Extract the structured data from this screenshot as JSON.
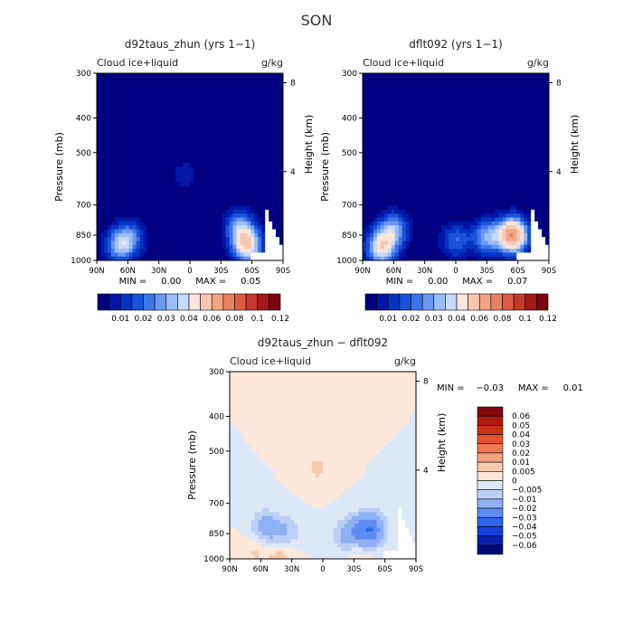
{
  "page_title": "SON",
  "colors": {
    "shared": [
      "#000080",
      "#0016a6",
      "#0633c2",
      "#1a52d9",
      "#3f75ea",
      "#6c97f2",
      "#9bbdf6",
      "#c6dbf8",
      "#fbe4d8",
      "#f8c7b2",
      "#f2a585",
      "#ea8160",
      "#dc5d42",
      "#c53a2d",
      "#a3191c",
      "#7a0510"
    ],
    "diff": [
      "#00087a",
      "#0a1fb0",
      "#163fd8",
      "#2f64ec",
      "#5d8cf3",
      "#8fb0f4",
      "#bcd0f5",
      "#dce8f8",
      "#fde8da",
      "#f9c9ae",
      "#f4a17e",
      "#ee7a55",
      "#e4532f",
      "#cc3218",
      "#ab1a0c",
      "#800808"
    ]
  },
  "chart_data": [
    {
      "type": "heatmap",
      "title": "d92taus_zhun (yrs 1−1)",
      "left_label": "Cloud ice+liquid",
      "right_label": "g/kg",
      "xlabel": "",
      "ylabel": "Pressure (mb)",
      "y2label": "Height (km)",
      "x_ticks": [
        "90N",
        "60N",
        "30N",
        "0",
        "30S",
        "60S",
        "90S"
      ],
      "y_ticks": [
        "300",
        "400",
        "500",
        "700",
        "850",
        "1000"
      ],
      "y2_ticks": [
        "8",
        "4"
      ],
      "min_max": "MIN =     0.00     MAX =     0.05",
      "colorbar_labels": [
        "0.01",
        "0.02",
        "0.03",
        "0.04",
        "0.06",
        "0.08",
        "0.1",
        "0.12"
      ],
      "features": [
        {
          "lat": 68,
          "p": 910,
          "amp": 0.03
        },
        {
          "lat": 57,
          "p": 860,
          "amp": 0.02
        },
        {
          "lat": -55,
          "p": 905,
          "amp": 0.05
        },
        {
          "lat": -48,
          "p": 800,
          "amp": 0.025
        },
        {
          "lat": 5,
          "p": 580,
          "amp": 0.008
        }
      ]
    },
    {
      "type": "heatmap",
      "title": "dflt092 (yrs 1−1)",
      "left_label": "Cloud ice+liquid",
      "right_label": "g/kg",
      "xlabel": "",
      "ylabel": "Pressure (mb)",
      "y2label": "Height (km)",
      "x_ticks": [
        "90N",
        "60N",
        "30N",
        "0",
        "30S",
        "60S",
        "90S"
      ],
      "y_ticks": [
        "300",
        "400",
        "500",
        "700",
        "850",
        "1000"
      ],
      "y2_ticks": [
        "8",
        "4"
      ],
      "min_max": "MIN =     0.00     MAX =     0.07",
      "colorbar_labels": [
        "0.01",
        "0.02",
        "0.03",
        "0.04",
        "0.06",
        "0.08",
        "0.1",
        "0.12"
      ],
      "features": [
        {
          "lat": 72,
          "p": 920,
          "amp": 0.045
        },
        {
          "lat": 60,
          "p": 820,
          "amp": 0.03
        },
        {
          "lat": -55,
          "p": 850,
          "amp": 0.07
        },
        {
          "lat": -30,
          "p": 860,
          "amp": 0.03
        },
        {
          "lat": 0,
          "p": 880,
          "amp": 0.02
        }
      ]
    },
    {
      "type": "heatmap",
      "title": "d92taus_zhun − dflt092",
      "left_label": "Cloud ice+liquid",
      "right_label": "g/kg",
      "xlabel": "",
      "ylabel": "Pressure (mb)",
      "y2label": "Height (km)",
      "x_ticks": [
        "90N",
        "60N",
        "30N",
        "0",
        "30S",
        "60S",
        "90S"
      ],
      "y_ticks": [
        "300",
        "400",
        "500",
        "700",
        "850",
        "1000"
      ],
      "y2_ticks": [
        "8",
        "4"
      ],
      "min_max": "MIN =    −0.03     MAX =     0.01",
      "colorbar_labels": [
        "0.06",
        "0.05",
        "0.04",
        "0.03",
        "0.02",
        "0.01",
        "0.005",
        "0",
        "−0.005",
        "−0.01",
        "−0.02",
        "−0.03",
        "−0.04",
        "−0.05",
        "−0.06"
      ],
      "features": [
        {
          "lat": -45,
          "p": 830,
          "amp": -0.03
        },
        {
          "lat": -25,
          "p": 860,
          "amp": -0.015
        },
        {
          "lat": 55,
          "p": 820,
          "amp": -0.015
        },
        {
          "lat": 35,
          "p": 850,
          "amp": -0.01
        },
        {
          "lat": 65,
          "p": 950,
          "amp": 0.006
        },
        {
          "lat": 40,
          "p": 975,
          "amp": 0.008
        },
        {
          "lat": -35,
          "p": 970,
          "amp": 0.006
        },
        {
          "lat": 5,
          "p": 560,
          "amp": 0.006
        }
      ]
    }
  ]
}
